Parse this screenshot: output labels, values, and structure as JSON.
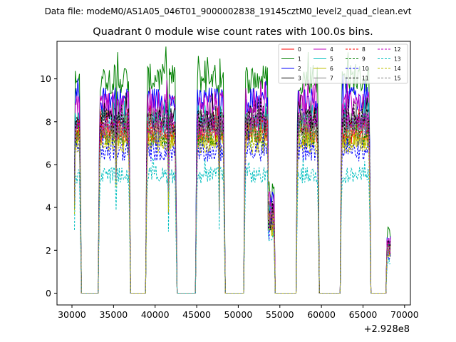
{
  "chart_data": {
    "type": "line",
    "suptitle": "Data file: modeM0/AS1A05_046T01_9000002838_19145cztM0_level2_quad_clean.evt",
    "title": "Quadrant 0 module wise count rates with 100.0s bins.",
    "xlabel": "",
    "ylabel": "",
    "offset_label": "+2.928e8",
    "xlim": [
      28200,
      70700
    ],
    "ylim": [
      -0.55,
      11.75
    ],
    "xticks": [
      30000,
      35000,
      40000,
      45000,
      50000,
      55000,
      60000,
      65000,
      70000
    ],
    "yticks": [
      0,
      2,
      4,
      6,
      8,
      10
    ],
    "legend_position": "top-right",
    "grid": false,
    "segments": [
      {
        "start": 30300,
        "end": 31000
      },
      {
        "start": 33300,
        "end": 35300
      },
      {
        "start": 35300,
        "end": 36900
      },
      {
        "start": 39000,
        "end": 41600
      },
      {
        "start": 41600,
        "end": 42500
      },
      {
        "start": 45000,
        "end": 47700
      },
      {
        "start": 47700,
        "end": 48300
      },
      {
        "start": 50800,
        "end": 53600
      },
      {
        "start": 53600,
        "end": 54300
      },
      {
        "start": 57100,
        "end": 59600
      },
      {
        "start": 62400,
        "end": 65800
      },
      {
        "start": 67900,
        "end": 68300
      }
    ],
    "gaps_value": 0,
    "series": [
      {
        "name": "0",
        "color": "#ff0000",
        "dash": "solid",
        "level": 7.4
      },
      {
        "name": "1",
        "color": "#008000",
        "dash": "solid",
        "level": 10.0
      },
      {
        "name": "2",
        "color": "#0000ff",
        "dash": "solid",
        "level": 9.0
      },
      {
        "name": "3",
        "color": "#000000",
        "dash": "solid",
        "level": 8.2
      },
      {
        "name": "4",
        "color": "#bf00bf",
        "dash": "solid",
        "level": 8.8
      },
      {
        "name": "5",
        "color": "#00bfbf",
        "dash": "solid",
        "level": 7.9
      },
      {
        "name": "6",
        "color": "#bfbf00",
        "dash": "solid",
        "level": 7.2
      },
      {
        "name": "7",
        "color": "#808080",
        "dash": "solid",
        "level": 7.9
      },
      {
        "name": "8",
        "color": "#ff0000",
        "dash": "dashed",
        "level": 7.6
      },
      {
        "name": "9",
        "color": "#008000",
        "dash": "dashed",
        "level": 7.3
      },
      {
        "name": "10",
        "color": "#0000ff",
        "dash": "dashed",
        "level": 6.6
      },
      {
        "name": "11",
        "color": "#000000",
        "dash": "dashed",
        "level": 8.0
      },
      {
        "name": "12",
        "color": "#bf00bf",
        "dash": "dashed",
        "level": 7.9
      },
      {
        "name": "13",
        "color": "#00bfbf",
        "dash": "dashed",
        "level": 5.5
      },
      {
        "name": "14",
        "color": "#bfbf00",
        "dash": "dashed",
        "level": 7.0
      },
      {
        "name": "15",
        "color": "#808080",
        "dash": "dashed",
        "level": 7.5
      }
    ]
  }
}
